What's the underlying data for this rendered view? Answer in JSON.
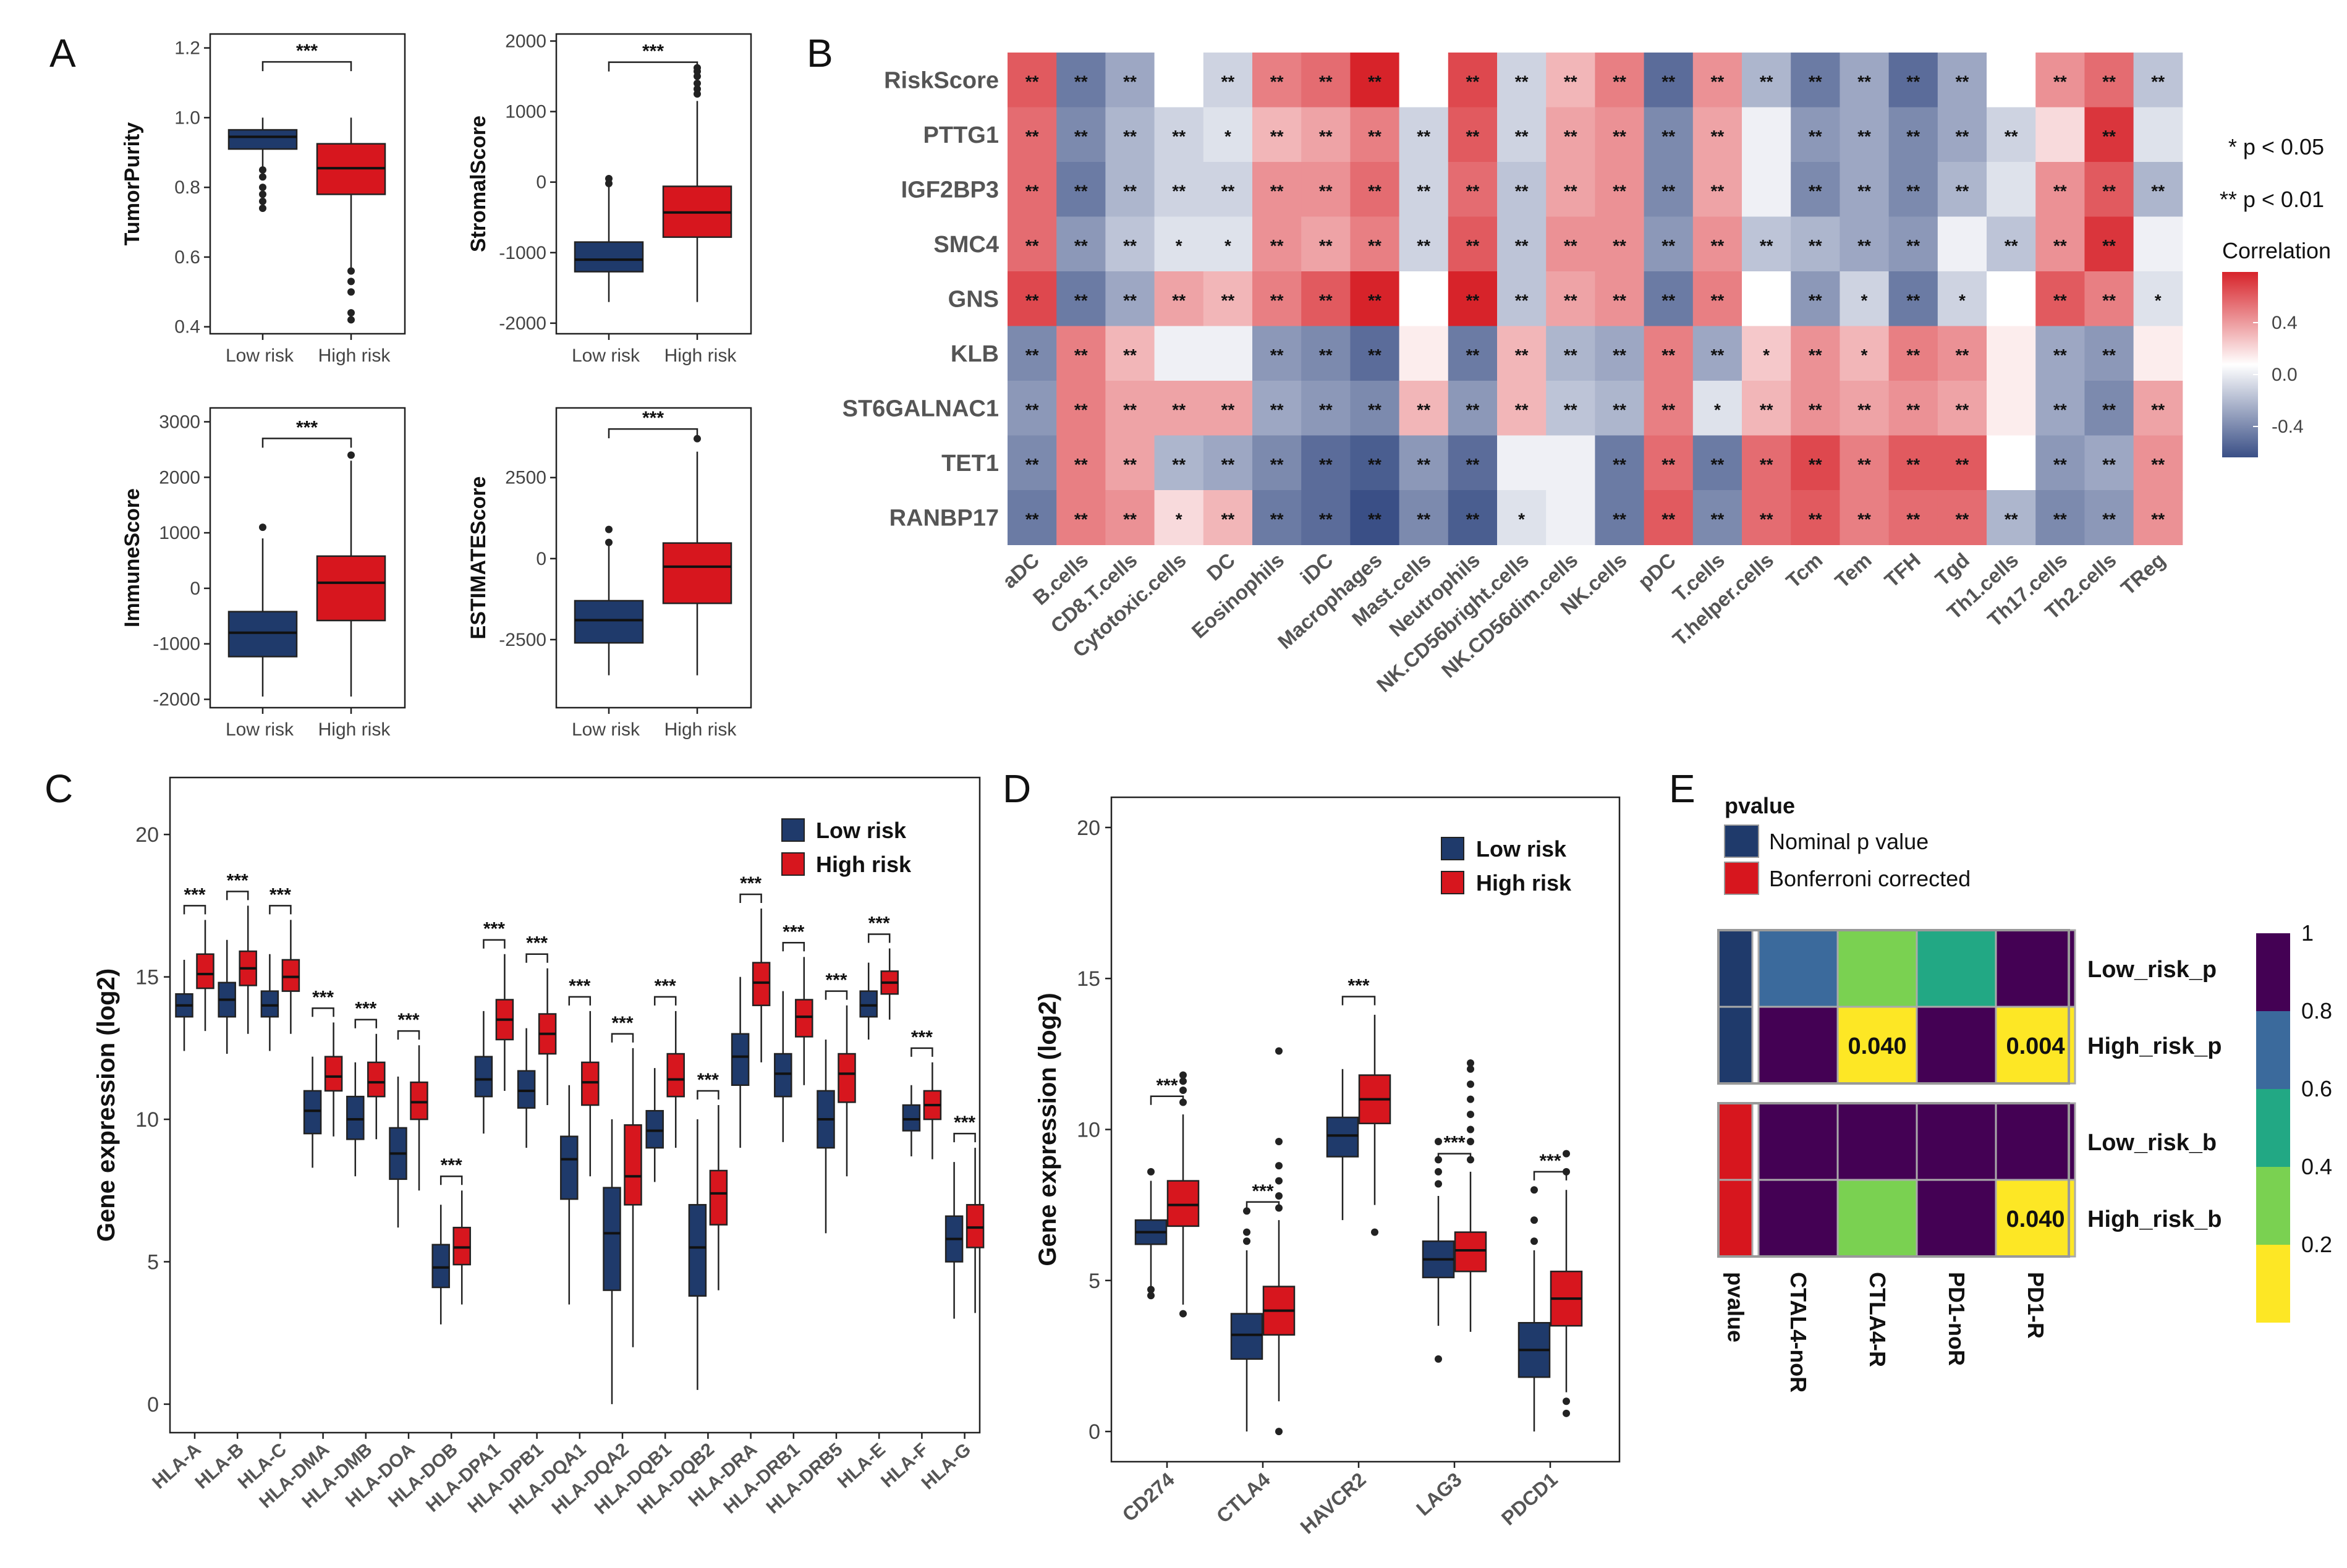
{
  "panels": {
    "a": "A",
    "b": "B",
    "c": "C",
    "d": "D",
    "e": "E"
  },
  "colors": {
    "low": "#1f3a6b",
    "high": "#d7161e",
    "neg": "#3a4f86",
    "pos": "#d7232a",
    "mid": "#ffffff"
  },
  "panelA": {
    "xlabels": [
      "Low risk",
      "High risk"
    ],
    "sig": "***",
    "plots": [
      {
        "id": "tp",
        "ylabel": "TumorPurity",
        "yrange": [
          0.38,
          1.24
        ],
        "ticks": [
          0.4,
          0.6,
          0.8,
          1.0,
          1.2
        ],
        "tickLabels": [
          "0.4",
          "0.6",
          "0.8",
          "1.0",
          "1.2"
        ],
        "low": {
          "q1": 0.91,
          "med": 0.945,
          "q3": 0.965,
          "lo": 0.86,
          "hi": 1.0,
          "out": [
            0.85,
            0.83,
            0.8,
            0.78,
            0.76,
            0.74
          ]
        },
        "high": {
          "q1": 0.78,
          "med": 0.855,
          "q3": 0.925,
          "lo": 0.57,
          "hi": 1.0,
          "out": [
            0.56,
            0.53,
            0.5,
            0.44,
            0.42
          ]
        },
        "brk": 1.16
      },
      {
        "id": "ss",
        "ylabel": "StromalScore",
        "yrange": [
          -2150,
          2100
        ],
        "ticks": [
          -2000,
          -1000,
          0,
          1000,
          2000
        ],
        "tickLabels": [
          "-2000",
          "-1000",
          "0",
          "1000",
          "2000"
        ],
        "low": {
          "q1": -1270,
          "med": -1100,
          "q3": -850,
          "lo": -1700,
          "hi": 20,
          "out": [
            50,
            -20
          ]
        },
        "high": {
          "q1": -780,
          "med": -430,
          "q3": -60,
          "lo": -1700,
          "hi": 1150,
          "out": [
            1250,
            1320,
            1400,
            1500,
            1570,
            1620
          ]
        },
        "brk": 1700
      },
      {
        "id": "is",
        "ylabel": "ImmuneScore",
        "yrange": [
          -2150,
          3250
        ],
        "ticks": [
          -2000,
          -1000,
          0,
          1000,
          2000,
          3000
        ],
        "tickLabels": [
          "-2000",
          "-1000",
          "0",
          "1000",
          "2000",
          "3000"
        ],
        "low": {
          "q1": -1230,
          "med": -800,
          "q3": -420,
          "lo": -1950,
          "hi": 900,
          "out": [
            1100
          ]
        },
        "high": {
          "q1": -580,
          "med": 100,
          "q3": 580,
          "lo": -1950,
          "hi": 2300,
          "out": [
            2400
          ]
        },
        "brk": 2700
      },
      {
        "id": "es",
        "ylabel": "ESTIMATEScore",
        "yrange": [
          -4600,
          4650
        ],
        "ticks": [
          -2500,
          0,
          2500
        ],
        "tickLabels": [
          "-2500",
          "0",
          "2500"
        ],
        "low": {
          "q1": -2600,
          "med": -1900,
          "q3": -1300,
          "lo": -3600,
          "hi": 400,
          "out": [
            900,
            500
          ]
        },
        "high": {
          "q1": -1380,
          "med": -250,
          "q3": 480,
          "lo": -3600,
          "hi": 3300,
          "out": [
            3700
          ]
        },
        "brk": 4000
      }
    ]
  },
  "heatmap": {
    "rows": [
      "RiskScore",
      "PTTG1",
      "IGF2BP3",
      "SMC4",
      "GNS",
      "KLB",
      "ST6GALNAC1",
      "TET1",
      "RANBP17"
    ],
    "cols": [
      "aDC",
      "B.cells",
      "CD8.T.cells",
      "Cytotoxic.cells",
      "DC",
      "Eosinophils",
      "iDC",
      "Macrophages",
      "Mast.cells",
      "Neutrophils",
      "NK.CD56bright.cells",
      "NK.CD56dim.cells",
      "NK.cells",
      "pDC",
      "T.cells",
      "T.helper.cells",
      "Tcm",
      "Tem",
      "TFH",
      "Tgd",
      "Th1.cells",
      "Th17.cells",
      "Th2.cells",
      "TReg"
    ],
    "values": [
      [
        0.45,
        -0.45,
        -0.3,
        0.0,
        -0.15,
        0.35,
        0.4,
        0.6,
        0.0,
        0.5,
        -0.15,
        0.2,
        0.35,
        -0.5,
        0.3,
        -0.25,
        -0.45,
        -0.3,
        -0.5,
        -0.3,
        0.0,
        0.3,
        0.4,
        -0.2
      ],
      [
        0.4,
        -0.4,
        -0.25,
        -0.15,
        -0.1,
        0.2,
        0.25,
        0.35,
        -0.15,
        0.45,
        -0.15,
        0.25,
        0.3,
        -0.4,
        0.25,
        -0.05,
        -0.35,
        -0.3,
        -0.4,
        -0.3,
        -0.15,
        0.1,
        0.55,
        -0.1
      ],
      [
        0.4,
        -0.45,
        -0.25,
        -0.15,
        -0.15,
        0.3,
        0.3,
        0.4,
        -0.15,
        0.4,
        -0.2,
        0.25,
        0.3,
        -0.4,
        0.25,
        -0.05,
        -0.4,
        -0.3,
        -0.4,
        -0.25,
        -0.1,
        0.3,
        0.45,
        -0.25
      ],
      [
        0.4,
        -0.35,
        -0.2,
        -0.1,
        -0.1,
        0.3,
        0.25,
        0.35,
        -0.15,
        0.45,
        -0.2,
        0.3,
        0.3,
        -0.35,
        0.3,
        -0.2,
        -0.25,
        -0.3,
        -0.35,
        -0.05,
        -0.2,
        0.3,
        0.55,
        -0.05
      ],
      [
        0.5,
        -0.45,
        -0.3,
        0.25,
        0.2,
        0.35,
        0.45,
        0.65,
        0.0,
        0.6,
        -0.2,
        0.25,
        0.3,
        -0.45,
        0.35,
        0.0,
        -0.35,
        -0.15,
        -0.45,
        -0.15,
        0.0,
        0.45,
        0.35,
        -0.1
      ],
      [
        -0.4,
        0.35,
        0.2,
        -0.05,
        -0.05,
        -0.35,
        -0.4,
        -0.5,
        0.05,
        -0.45,
        0.2,
        -0.25,
        -0.3,
        0.35,
        -0.3,
        0.15,
        0.3,
        0.2,
        0.35,
        0.3,
        0.05,
        -0.3,
        -0.35,
        0.05
      ],
      [
        -0.35,
        0.35,
        0.25,
        0.25,
        0.25,
        -0.3,
        -0.35,
        -0.4,
        0.2,
        -0.35,
        0.2,
        -0.2,
        -0.25,
        0.35,
        -0.1,
        0.2,
        0.3,
        0.25,
        0.3,
        0.25,
        0.05,
        -0.3,
        -0.4,
        0.25
      ],
      [
        -0.4,
        0.35,
        0.25,
        -0.25,
        -0.3,
        -0.4,
        -0.5,
        -0.55,
        -0.35,
        -0.5,
        -0.05,
        -0.05,
        -0.45,
        0.4,
        -0.45,
        0.4,
        0.5,
        0.35,
        0.45,
        0.45,
        0.0,
        -0.35,
        -0.3,
        0.3
      ],
      [
        -0.45,
        0.35,
        0.3,
        0.1,
        0.2,
        -0.45,
        -0.5,
        -0.6,
        -0.4,
        -0.55,
        -0.1,
        -0.05,
        -0.45,
        0.45,
        -0.4,
        0.4,
        0.45,
        0.35,
        0.4,
        0.4,
        -0.25,
        -0.4,
        -0.35,
        0.3
      ]
    ],
    "stars": [
      [
        "**",
        "**",
        "**",
        "",
        "**",
        "**",
        "**",
        "**",
        "",
        "**",
        "**",
        "**",
        "**",
        "**",
        "**",
        "**",
        "**",
        "**",
        "**",
        "**",
        "",
        "**",
        "**",
        "**"
      ],
      [
        "**",
        "**",
        "**",
        "**",
        "*",
        "**",
        "**",
        "**",
        "**",
        "**",
        "**",
        "**",
        "**",
        "**",
        "**",
        "",
        "**",
        "**",
        "**",
        "**",
        "**",
        "",
        "**",
        ""
      ],
      [
        "**",
        "**",
        "**",
        "**",
        "**",
        "**",
        "**",
        "**",
        "**",
        "**",
        "**",
        "**",
        "**",
        "**",
        "**",
        "",
        "**",
        "**",
        "**",
        "**",
        "",
        "**",
        "**",
        "**"
      ],
      [
        "**",
        "**",
        "**",
        "*",
        "*",
        "**",
        "**",
        "**",
        "**",
        "**",
        "**",
        "**",
        "**",
        "**",
        "**",
        "**",
        "**",
        "**",
        "**",
        "",
        "**",
        "**",
        "**",
        ""
      ],
      [
        "**",
        "**",
        "**",
        "**",
        "**",
        "**",
        "**",
        "**",
        "",
        "**",
        "**",
        "**",
        "**",
        "**",
        "**",
        "",
        "**",
        "*",
        "**",
        "*",
        "",
        "**",
        "**",
        "*"
      ],
      [
        "**",
        "**",
        "**",
        "",
        "",
        "**",
        "**",
        "**",
        "",
        "**",
        "**",
        "**",
        "**",
        "**",
        "**",
        "*",
        "**",
        "*",
        "**",
        "**",
        "",
        "**",
        "**",
        ""
      ],
      [
        "**",
        "**",
        "**",
        "**",
        "**",
        "**",
        "**",
        "**",
        "**",
        "**",
        "**",
        "**",
        "**",
        "**",
        "*",
        "**",
        "**",
        "**",
        "**",
        "**",
        "",
        "**",
        "**",
        "**"
      ],
      [
        "**",
        "**",
        "**",
        "**",
        "**",
        "**",
        "**",
        "**",
        "**",
        "**",
        "",
        "",
        "**",
        "**",
        "**",
        "**",
        "**",
        "**",
        "**",
        "**",
        "",
        "**",
        "**",
        "**"
      ],
      [
        "**",
        "**",
        "**",
        "*",
        "**",
        "**",
        "**",
        "**",
        "**",
        "**",
        "*",
        "",
        "**",
        "**",
        "**",
        "**",
        "**",
        "**",
        "**",
        "**",
        "**",
        "**",
        "**",
        "**"
      ]
    ],
    "pnote1": "* p < 0.05",
    "pnote2": "** p < 0.01",
    "legendTitle": "Correlation",
    "legendTicks": [
      "0.4",
      "0.0",
      "-0.4"
    ]
  },
  "panelC": {
    "ylabel": "Gene expression (log2)",
    "yrange": [
      -1,
      22
    ],
    "ticks": [
      0,
      5,
      10,
      15,
      20
    ],
    "legend": [
      "Low risk",
      "High risk"
    ],
    "sig": "***",
    "genes": [
      "HLA-A",
      "HLA-B",
      "HLA-C",
      "HLA-DMA",
      "HLA-DMB",
      "HLA-DOA",
      "HLA-DOB",
      "HLA-DPA1",
      "HLA-DPB1",
      "HLA-DQA1",
      "HLA-DQA2",
      "HLA-DQB1",
      "HLA-DQB2",
      "HLA-DRA",
      "HLA-DRB1",
      "HLA-DRB5",
      "HLA-E",
      "HLA-F",
      "HLA-G"
    ],
    "low": [
      {
        "q1": 13.6,
        "med": 14.0,
        "q3": 14.4,
        "lo": 12.4,
        "hi": 15.6
      },
      {
        "q1": 13.6,
        "med": 14.2,
        "q3": 14.8,
        "lo": 12.3,
        "hi": 16.3
      },
      {
        "q1": 13.6,
        "med": 14.0,
        "q3": 14.5,
        "lo": 12.4,
        "hi": 15.8
      },
      {
        "q1": 9.5,
        "med": 10.3,
        "q3": 11.0,
        "lo": 8.3,
        "hi": 12.2
      },
      {
        "q1": 9.3,
        "med": 10.0,
        "q3": 10.8,
        "lo": 8.0,
        "hi": 12.0
      },
      {
        "q1": 7.9,
        "med": 8.8,
        "q3": 9.7,
        "lo": 6.2,
        "hi": 11.5
      },
      {
        "q1": 4.1,
        "med": 4.8,
        "q3": 5.6,
        "lo": 2.8,
        "hi": 7.0
      },
      {
        "q1": 10.8,
        "med": 11.4,
        "q3": 12.2,
        "lo": 9.5,
        "hi": 13.8
      },
      {
        "q1": 10.4,
        "med": 11.0,
        "q3": 11.7,
        "lo": 9.0,
        "hi": 13.2
      },
      {
        "q1": 7.2,
        "med": 8.6,
        "q3": 9.4,
        "lo": 3.5,
        "hi": 11.2
      },
      {
        "q1": 4.0,
        "med": 6.0,
        "q3": 7.6,
        "lo": 0.0,
        "hi": 10.0
      },
      {
        "q1": 9.0,
        "med": 9.6,
        "q3": 10.3,
        "lo": 7.8,
        "hi": 11.8
      },
      {
        "q1": 3.8,
        "med": 5.5,
        "q3": 7.0,
        "lo": 0.5,
        "hi": 10.0
      },
      {
        "q1": 11.2,
        "med": 12.2,
        "q3": 13.0,
        "lo": 9.0,
        "hi": 15.0
      },
      {
        "q1": 10.8,
        "med": 11.6,
        "q3": 12.3,
        "lo": 9.2,
        "hi": 14.5
      },
      {
        "q1": 9.0,
        "med": 10.0,
        "q3": 11.0,
        "lo": 6.0,
        "hi": 12.8
      },
      {
        "q1": 13.6,
        "med": 14.0,
        "q3": 14.5,
        "lo": 12.8,
        "hi": 15.5
      },
      {
        "q1": 9.6,
        "med": 10.0,
        "q3": 10.5,
        "lo": 8.7,
        "hi": 11.2
      },
      {
        "q1": 5.0,
        "med": 5.8,
        "q3": 6.6,
        "lo": 3.0,
        "hi": 8.5
      }
    ],
    "high": [
      {
        "q1": 14.6,
        "med": 15.1,
        "q3": 15.8,
        "lo": 13.1,
        "hi": 17.0
      },
      {
        "q1": 14.7,
        "med": 15.3,
        "q3": 15.9,
        "lo": 13.0,
        "hi": 17.5
      },
      {
        "q1": 14.5,
        "med": 15.0,
        "q3": 15.6,
        "lo": 13.0,
        "hi": 17.0
      },
      {
        "q1": 11.0,
        "med": 11.5,
        "q3": 12.2,
        "lo": 9.4,
        "hi": 13.4
      },
      {
        "q1": 10.8,
        "med": 11.3,
        "q3": 12.0,
        "lo": 9.3,
        "hi": 13.0
      },
      {
        "q1": 10.0,
        "med": 10.6,
        "q3": 11.3,
        "lo": 7.5,
        "hi": 12.6
      },
      {
        "q1": 4.9,
        "med": 5.5,
        "q3": 6.2,
        "lo": 3.5,
        "hi": 7.5
      },
      {
        "q1": 12.8,
        "med": 13.5,
        "q3": 14.2,
        "lo": 11.0,
        "hi": 15.8
      },
      {
        "q1": 12.3,
        "med": 13.0,
        "q3": 13.7,
        "lo": 10.5,
        "hi": 15.3
      },
      {
        "q1": 10.5,
        "med": 11.3,
        "q3": 12.0,
        "lo": 8.0,
        "hi": 13.8
      },
      {
        "q1": 7.0,
        "med": 8.0,
        "q3": 9.8,
        "lo": 2.0,
        "hi": 12.5
      },
      {
        "q1": 10.8,
        "med": 11.4,
        "q3": 12.3,
        "lo": 9.0,
        "hi": 13.8
      },
      {
        "q1": 6.3,
        "med": 7.4,
        "q3": 8.2,
        "lo": 4.0,
        "hi": 10.5
      },
      {
        "q1": 14.0,
        "med": 14.8,
        "q3": 15.5,
        "lo": 12.0,
        "hi": 17.4
      },
      {
        "q1": 12.9,
        "med": 13.6,
        "q3": 14.2,
        "lo": 11.2,
        "hi": 15.7
      },
      {
        "q1": 10.6,
        "med": 11.6,
        "q3": 12.3,
        "lo": 8.0,
        "hi": 14.0
      },
      {
        "q1": 14.4,
        "med": 14.8,
        "q3": 15.2,
        "lo": 13.5,
        "hi": 16.0
      },
      {
        "q1": 10.0,
        "med": 10.5,
        "q3": 11.0,
        "lo": 8.6,
        "hi": 12.0
      },
      {
        "q1": 5.5,
        "med": 6.2,
        "q3": 7.0,
        "lo": 3.2,
        "hi": 9.0
      }
    ]
  },
  "panelD": {
    "ylabel": "Gene expression (log2)",
    "yrange": [
      -1,
      21
    ],
    "ticks": [
      0,
      5,
      10,
      15,
      20
    ],
    "legend": [
      "Low risk",
      "High risk"
    ],
    "sig": "***",
    "genes": [
      "CD274",
      "CTLA4",
      "HAVCR2",
      "LAG3",
      "PDCD1"
    ],
    "low": [
      {
        "q1": 6.2,
        "med": 6.6,
        "q3": 7.0,
        "lo": 4.8,
        "hi": 8.3,
        "out": [
          8.6,
          4.5,
          4.7
        ]
      },
      {
        "q1": 2.4,
        "med": 3.2,
        "q3": 3.9,
        "lo": 0.0,
        "hi": 6.0,
        "out": [
          6.3,
          6.6,
          7.3
        ]
      },
      {
        "q1": 9.1,
        "med": 9.8,
        "q3": 10.4,
        "lo": 7.0,
        "hi": 12.0,
        "out": []
      },
      {
        "q1": 5.1,
        "med": 5.7,
        "q3": 6.3,
        "lo": 3.5,
        "hi": 7.8,
        "out": [
          8.2,
          8.6,
          9.0,
          9.6,
          2.4
        ]
      },
      {
        "q1": 1.8,
        "med": 2.7,
        "q3": 3.6,
        "lo": 0.0,
        "hi": 6.0,
        "out": [
          6.3,
          7.0,
          8.0
        ]
      }
    ],
    "high": [
      {
        "q1": 6.8,
        "med": 7.5,
        "q3": 8.3,
        "lo": 4.2,
        "hi": 10.5,
        "out": [
          10.9,
          11.3,
          11.6,
          11.8,
          3.9
        ]
      },
      {
        "q1": 3.2,
        "med": 4.0,
        "q3": 4.8,
        "lo": 1.0,
        "hi": 7.0,
        "out": [
          7.4,
          7.8,
          8.3,
          8.8,
          9.6,
          12.6,
          0.0
        ]
      },
      {
        "q1": 10.2,
        "med": 11.0,
        "q3": 11.8,
        "lo": 7.5,
        "hi": 13.8,
        "out": [
          6.6
        ]
      },
      {
        "q1": 5.3,
        "med": 6.0,
        "q3": 6.6,
        "lo": 3.3,
        "hi": 8.6,
        "out": [
          9.0,
          9.6,
          10.0,
          10.5,
          11.0,
          11.5,
          12.0,
          12.2
        ]
      },
      {
        "q1": 3.5,
        "med": 4.4,
        "q3": 5.3,
        "lo": 1.3,
        "hi": 8.0,
        "out": [
          8.6,
          9.2,
          1.0,
          0.6
        ]
      }
    ]
  },
  "panelE": {
    "legendTitle": "pvalue",
    "legendItems": [
      "Nominal p value",
      "Bonferroni corrected"
    ],
    "rows": [
      "Low_risk_p",
      "High_risk_p",
      "Low_risk_b",
      "High_risk_b"
    ],
    "cols": [
      "pvalue",
      "CTAL4-noR",
      "CTLA4-R",
      "PD1-noR",
      "PD1-R"
    ],
    "groups": [
      "nominal",
      "nominal",
      "bonferroni",
      "bonferroni"
    ],
    "values": [
      [
        0.62,
        0.28,
        0.48,
        1.0
      ],
      [
        1.0,
        0.04,
        1.0,
        0.004
      ],
      [
        1.0,
        1.0,
        1.0,
        1.0
      ],
      [
        1.0,
        0.23,
        1.0,
        0.04
      ]
    ],
    "labels": [
      [
        "",
        "",
        "",
        ""
      ],
      [
        "",
        "0.040",
        "",
        "0.004"
      ],
      [
        "",
        "",
        "",
        ""
      ],
      [
        "",
        "",
        "",
        "0.040"
      ]
    ],
    "scaleTicks": [
      "1",
      "0.8",
      "0.6",
      "0.4",
      "0.2"
    ]
  }
}
